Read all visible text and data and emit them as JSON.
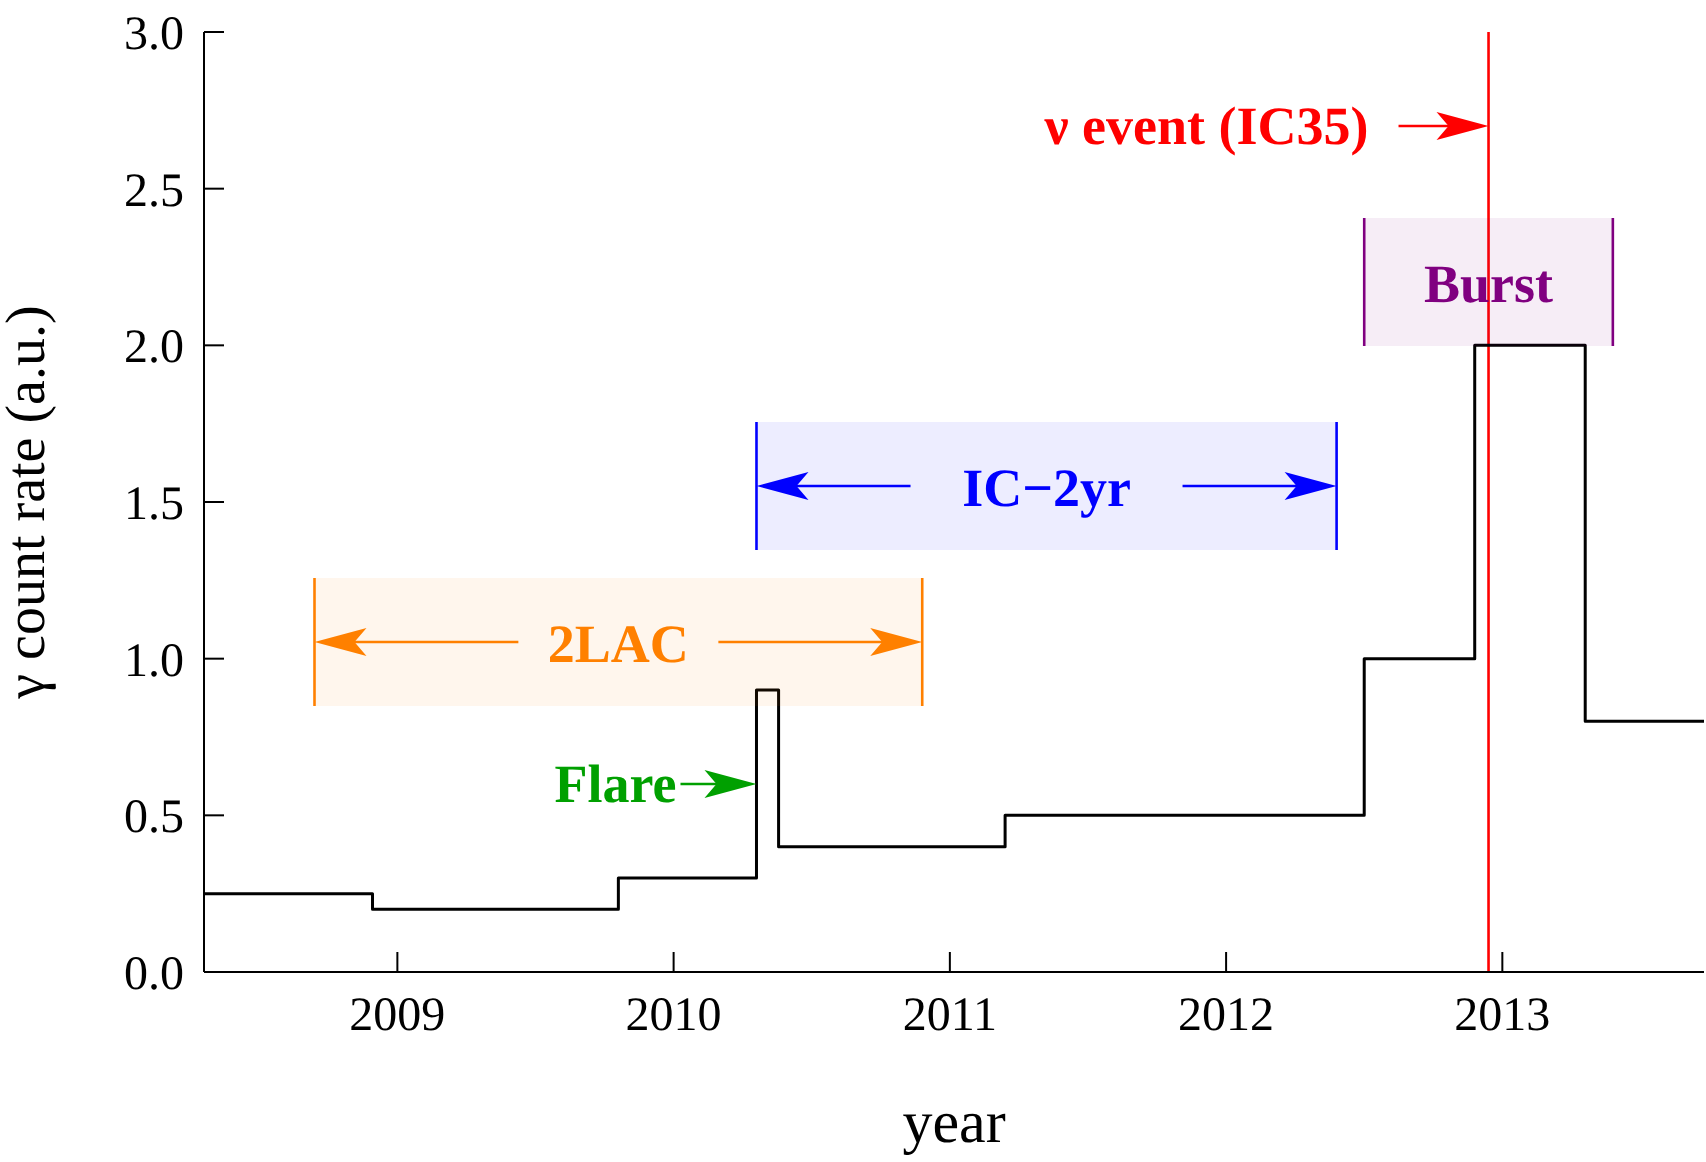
{
  "chart_data": {
    "type": "step",
    "xlabel": "year",
    "ylabel": "γ count rate (a.u.)",
    "x": [
      2008.3,
      2008.91,
      2009.8,
      2010.3,
      2010.38,
      2011.2,
      2012.5,
      2012.9,
      2013.3,
      2013.73
    ],
    "values": [
      0.25,
      0.2,
      0.3,
      0.9,
      0.4,
      0.5,
      1.0,
      2.0,
      0.8,
      0.8
    ],
    "color": "#000000",
    "xlim": [
      2008.3,
      2013.73
    ],
    "xticks": [
      2009,
      2010,
      2011,
      2012,
      2013
    ],
    "ylim": [
      0,
      3
    ],
    "yticks": [
      {
        "value": 0,
        "label": "0.0"
      },
      0.5,
      {
        "value": 1,
        "label": "1.0"
      },
      1.5,
      {
        "value": 2,
        "label": "2.0"
      },
      2.5,
      {
        "value": 3,
        "label": "3.0"
      }
    ],
    "ref_lines": [
      {
        "axis": "x",
        "value": 2012.95,
        "label": "ν event (IC35)",
        "color": "#ff0000"
      }
    ],
    "bands": [
      {
        "axis": "x",
        "from": 2008.7,
        "to": 2010.9,
        "label": "2LAC",
        "color": "#ff8000"
      },
      {
        "axis": "x",
        "from": 2010.3,
        "to": 2012.4,
        "label": "IC−2yr",
        "color": "#0000ff"
      },
      {
        "axis": "x",
        "from": 2012.5,
        "to": 2013.4,
        "label": "Burst",
        "color": "#800080"
      }
    ],
    "annotations": [
      {
        "text": "Flare",
        "x": 2010.3,
        "y": 0.6
      }
    ],
    "marker": "none",
    "line_style": "solid"
  }
}
